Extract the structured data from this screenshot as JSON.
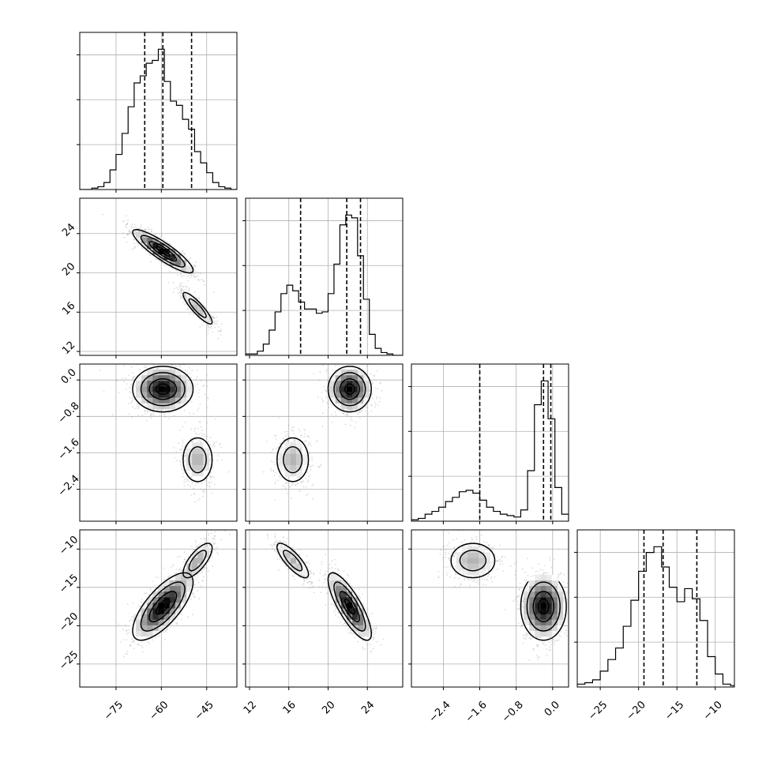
{
  "chart_data": {
    "type": "corner",
    "grid": true,
    "parameters": [
      {
        "range": [
          -87,
          -35
        ],
        "ticks": [
          -75,
          -60,
          -45
        ],
        "tick_labels": [
          "−75",
          "−60",
          "−45"
        ],
        "quantiles": [
          -65.5,
          -59.5,
          -50.0
        ],
        "histogram": {
          "edges": [
            -87,
            -85,
            -83,
            -81,
            -79,
            -77,
            -75,
            -73,
            -71,
            -69,
            -67,
            -65,
            -63,
            -61,
            -59,
            -57,
            -55,
            -53,
            -51,
            -49,
            -47,
            -45,
            -43,
            -41,
            -39,
            -37,
            -35
          ],
          "counts": [
            0,
            0,
            0.01,
            0.02,
            0.05,
            0.14,
            0.25,
            0.4,
            0.59,
            0.76,
            0.81,
            0.9,
            0.92,
            1.0,
            0.77,
            0.63,
            0.6,
            0.5,
            0.43,
            0.27,
            0.19,
            0.12,
            0.05,
            0.02,
            0.01,
            0
          ]
        },
        "blobs": [
          {
            "center": -59.5,
            "sd": 5.0
          },
          {
            "center": -48.0,
            "sd": 3.0
          }
        ]
      },
      {
        "range": [
          11.6,
          27.6
        ],
        "ticks": [
          12,
          16,
          20,
          24
        ],
        "tick_labels": [
          "12",
          "16",
          "20",
          "24"
        ],
        "quantiles": [
          17.2,
          21.9,
          23.3
        ],
        "histogram": {
          "edges": [
            11.6,
            12.2,
            12.8,
            13.4,
            14.0,
            14.6,
            15.2,
            15.8,
            16.4,
            17.0,
            17.6,
            18.2,
            18.8,
            19.4,
            20.0,
            20.6,
            21.2,
            21.8,
            22.4,
            23.0,
            23.6,
            24.2,
            24.8,
            25.4,
            26.0,
            26.6,
            27.6
          ],
          "counts": [
            0.01,
            0.01,
            0.03,
            0.08,
            0.18,
            0.31,
            0.44,
            0.5,
            0.46,
            0.38,
            0.33,
            0.33,
            0.3,
            0.31,
            0.44,
            0.65,
            0.93,
            1.0,
            0.98,
            0.71,
            0.4,
            0.15,
            0.05,
            0.02,
            0.01,
            0
          ]
        },
        "blobs": [
          {
            "center": 22.2,
            "sd": 1.1
          },
          {
            "center": 16.4,
            "sd": 1.0
          }
        ]
      },
      {
        "range": [
          -3.1,
          0.35
        ],
        "ticks": [
          -2.4,
          -1.6,
          -0.8,
          0.0
        ],
        "tick_labels": [
          "−2.4",
          "−1.6",
          "−0.8",
          "0.0"
        ],
        "quantiles": [
          -1.6,
          -0.2,
          -0.04
        ],
        "histogram": {
          "edges": [
            -3.1,
            -2.95,
            -2.8,
            -2.65,
            -2.5,
            -2.35,
            -2.2,
            -2.05,
            -1.9,
            -1.75,
            -1.6,
            -1.45,
            -1.3,
            -1.15,
            -1.0,
            -0.85,
            -0.7,
            -0.55,
            -0.4,
            -0.25,
            -0.1,
            0.05,
            0.2,
            0.35
          ],
          "counts": [
            0.01,
            0.02,
            0.05,
            0.07,
            0.1,
            0.14,
            0.17,
            0.21,
            0.22,
            0.2,
            0.15,
            0.1,
            0.07,
            0.05,
            0.04,
            0.03,
            0.08,
            0.36,
            0.83,
            1.0,
            0.73,
            0.24,
            0.05
          ]
        },
        "blobs": [
          {
            "center": -0.2,
            "sd": 0.25
          },
          {
            "center": -1.75,
            "sd": 0.3
          }
        ]
      },
      {
        "range": [
          -28,
          -7.5
        ],
        "ticks": [
          -25,
          -20,
          -15,
          -10
        ],
        "tick_labels": [
          "−25",
          "−20",
          "−15",
          "−10"
        ],
        "quantiles": [
          -19.3,
          -16.8,
          -12.4
        ],
        "histogram": {
          "edges": [
            -28,
            -27,
            -26,
            -25,
            -24,
            -23,
            -22,
            -21,
            -20,
            -19,
            -18,
            -17,
            -16,
            -15,
            -14,
            -13,
            -12,
            -11,
            -10,
            -9,
            -8,
            -7.5
          ],
          "counts": [
            0.02,
            0.03,
            0.05,
            0.11,
            0.19,
            0.27,
            0.42,
            0.6,
            0.8,
            0.93,
            0.97,
            0.83,
            0.69,
            0.59,
            0.68,
            0.61,
            0.46,
            0.21,
            0.09,
            0.02,
            0.01
          ]
        },
        "blobs": [
          {
            "center": -17.5,
            "sd": 2.2
          },
          {
            "center": -11.5,
            "sd": 1.4
          }
        ]
      }
    ]
  }
}
